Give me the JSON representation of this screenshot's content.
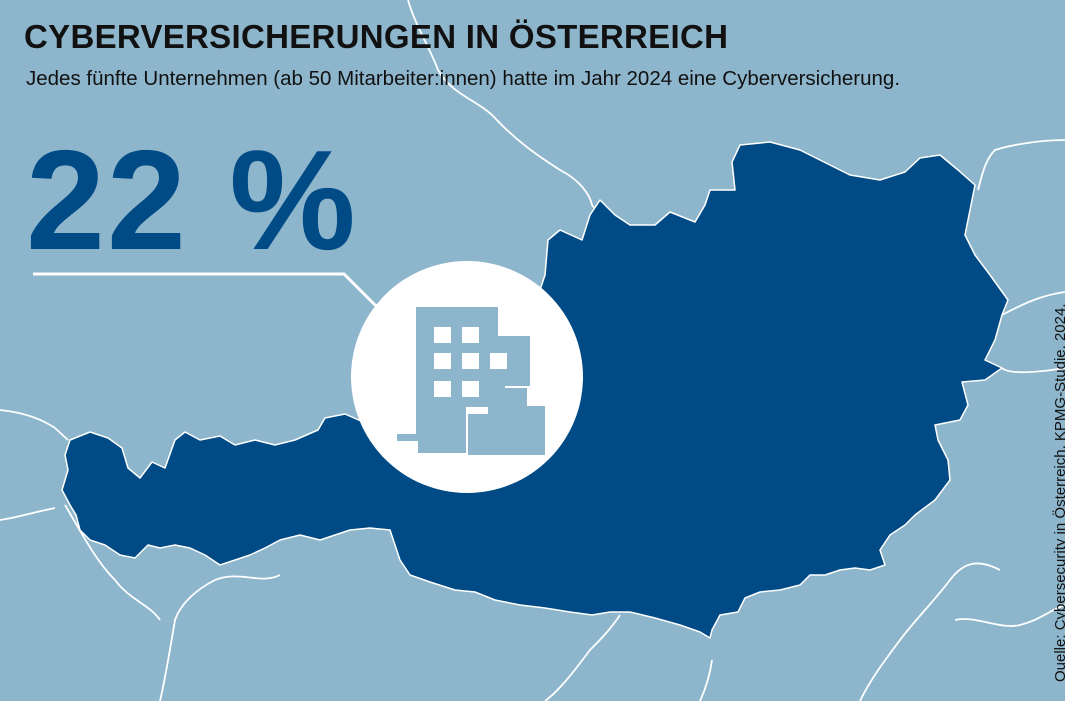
{
  "header": {
    "title": "CYBERVERSICHERUNGEN IN ÖSTERREICH",
    "subtitle": "Jedes fünfte Unternehmen (ab 50 Mitarbeiter:innen) hatte im Jahr 2024 eine Cyberversicherung."
  },
  "highlight": {
    "value": "22 %",
    "share_percent": 22,
    "icon": "building-icon"
  },
  "map": {
    "region": "Österreich",
    "colors": {
      "background": "#8db6cc",
      "country_fill": "#004b85",
      "borders": "#ffffff",
      "icon_circle": "#ffffff",
      "icon": "#8db6cc"
    }
  },
  "source": "Quelle: Cybersecurity in Österreich, KPMG-Studie, 2024."
}
